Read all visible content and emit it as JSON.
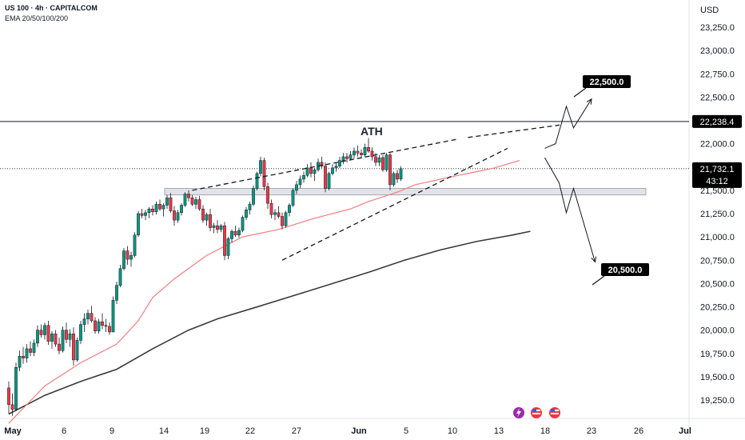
{
  "header": {
    "symbol_line": "US 100 · 4h · CAPITALCOM",
    "indicator_line": "EMA 20/50/100/200"
  },
  "chart_data": {
    "type": "candlestick",
    "currency": "USD",
    "ylim": [
      19050,
      23450
    ],
    "y_ticks": [
      "23,250.0",
      "23,000.0",
      "22,750.0",
      "22,500.0",
      "22,250.0",
      "22,000.0",
      "21,750.0",
      "21,500.0",
      "21,250.0",
      "21,000.0",
      "20,750.0",
      "20,500.0",
      "20,250.0",
      "20,000.0",
      "19,750.0",
      "19,500.0",
      "19,250.0"
    ],
    "y_tick_values": [
      23250,
      23000,
      22750,
      22500,
      22250,
      22000,
      21750,
      21500,
      21250,
      21000,
      20750,
      20500,
      20250,
      20000,
      19750,
      19500,
      19250
    ],
    "x_ticks": [
      "May",
      "6",
      "9",
      "14",
      "19",
      "22",
      "27",
      "Jun",
      "5",
      "10",
      "13",
      "18",
      "23",
      "26",
      "Jul"
    ],
    "bold_x_ticks": [
      "May",
      "Jun",
      "Jul"
    ],
    "price_tags": {
      "ath": {
        "value": 22238.4,
        "label": "22,238.4"
      },
      "current": {
        "value": 21732.1,
        "label": "21,732.1",
        "countdown": "43:12"
      }
    },
    "annotations": {
      "ath_label": "ATH",
      "target_up": {
        "value": 22500,
        "label": "22,500.0"
      },
      "target_down": {
        "value": 20500,
        "label": "20,500.0"
      }
    },
    "support_zone": [
      21450,
      21520
    ],
    "colors": {
      "up": "#089981",
      "down": "#f23645",
      "ema50": "#f77c80",
      "ema200": "#3a3a3a",
      "tag": "#000000"
    },
    "candles": [
      [
        19380,
        19450,
        19100,
        19200
      ],
      [
        19200,
        19320,
        19080,
        19150
      ],
      [
        19150,
        19650,
        19130,
        19600
      ],
      [
        19600,
        19780,
        19560,
        19720
      ],
      [
        19720,
        19820,
        19640,
        19700
      ],
      [
        19700,
        19850,
        19650,
        19800
      ],
      [
        19800,
        19880,
        19720,
        19760
      ],
      [
        19760,
        19900,
        19720,
        19860
      ],
      [
        19860,
        20050,
        19820,
        20000
      ],
      [
        20000,
        20060,
        19920,
        19950
      ],
      [
        19950,
        20080,
        19900,
        20050
      ],
      [
        20050,
        20100,
        19840,
        19880
      ],
      [
        19880,
        19990,
        19800,
        19960
      ],
      [
        19960,
        20000,
        19820,
        19850
      ],
      [
        19850,
        19920,
        19740,
        19780
      ],
      [
        19780,
        20040,
        19760,
        20000
      ],
      [
        20000,
        20080,
        19860,
        19900
      ],
      [
        19900,
        20010,
        19820,
        19960
      ],
      [
        19960,
        20030,
        19620,
        19680
      ],
      [
        19680,
        19920,
        19660,
        19890
      ],
      [
        19890,
        20100,
        19850,
        20060
      ],
      [
        20060,
        20180,
        19980,
        20120
      ],
      [
        20120,
        20220,
        20060,
        20180
      ],
      [
        20180,
        20260,
        20080,
        20100
      ],
      [
        20100,
        20140,
        19960,
        19990
      ],
      [
        19990,
        20120,
        19960,
        20090
      ],
      [
        20090,
        20180,
        20010,
        20050
      ],
      [
        20050,
        20120,
        19980,
        20040
      ],
      [
        20040,
        20080,
        19950,
        19980
      ],
      [
        19980,
        20360,
        19980,
        20320
      ],
      [
        20320,
        20520,
        20280,
        20480
      ],
      [
        20480,
        20700,
        20460,
        20660
      ],
      [
        20660,
        20880,
        20640,
        20850
      ],
      [
        20850,
        20900,
        20700,
        20760
      ],
      [
        20760,
        20840,
        20680,
        20800
      ],
      [
        20800,
        21050,
        20780,
        21020
      ],
      [
        21020,
        21280,
        21000,
        21250
      ],
      [
        21250,
        21300,
        21200,
        21230
      ],
      [
        21230,
        21290,
        21180,
        21260
      ],
      [
        21260,
        21320,
        21200,
        21300
      ],
      [
        21300,
        21340,
        21230,
        21270
      ],
      [
        21270,
        21380,
        21240,
        21350
      ],
      [
        21350,
        21400,
        21280,
        21300
      ],
      [
        21300,
        21360,
        21220,
        21340
      ],
      [
        21340,
        21450,
        21300,
        21420
      ],
      [
        21420,
        21470,
        21260,
        21280
      ],
      [
        21280,
        21330,
        21120,
        21180
      ],
      [
        21180,
        21290,
        21150,
        21260
      ],
      [
        21260,
        21360,
        21230,
        21340
      ],
      [
        21340,
        21480,
        21320,
        21460
      ],
      [
        21460,
        21500,
        21380,
        21420
      ],
      [
        21420,
        21450,
        21330,
        21350
      ],
      [
        21350,
        21430,
        21300,
        21400
      ],
      [
        21400,
        21440,
        21280,
        21300
      ],
      [
        21300,
        21340,
        21150,
        21180
      ],
      [
        21180,
        21260,
        21120,
        21240
      ],
      [
        21240,
        21300,
        21060,
        21100
      ],
      [
        21100,
        21150,
        21040,
        21120
      ],
      [
        21120,
        21180,
        21040,
        21080
      ],
      [
        21080,
        21140,
        21050,
        21120
      ],
      [
        21120,
        21160,
        20750,
        20800
      ],
      [
        20800,
        21000,
        20760,
        20980
      ],
      [
        20980,
        21080,
        20940,
        21060
      ],
      [
        21060,
        21120,
        21000,
        21020
      ],
      [
        21020,
        21100,
        20990,
        21070
      ],
      [
        21070,
        21230,
        21050,
        21210
      ],
      [
        21210,
        21320,
        21180,
        21290
      ],
      [
        21290,
        21380,
        21240,
        21350
      ],
      [
        21350,
        21550,
        21330,
        21520
      ],
      [
        21520,
        21700,
        21500,
        21680
      ],
      [
        21680,
        21860,
        21650,
        21820
      ],
      [
        21820,
        21850,
        21500,
        21540
      ],
      [
        21540,
        21580,
        21300,
        21360
      ],
      [
        21360,
        21400,
        21200,
        21240
      ],
      [
        21240,
        21300,
        21180,
        21260
      ],
      [
        21260,
        21330,
        21200,
        21220
      ],
      [
        21220,
        21260,
        21080,
        21120
      ],
      [
        21120,
        21280,
        21100,
        21260
      ],
      [
        21260,
        21360,
        21220,
        21340
      ],
      [
        21340,
        21520,
        21320,
        21500
      ],
      [
        21500,
        21600,
        21460,
        21560
      ],
      [
        21560,
        21660,
        21520,
        21620
      ],
      [
        21620,
        21700,
        21580,
        21660
      ],
      [
        21660,
        21780,
        21640,
        21740
      ],
      [
        21740,
        21800,
        21640,
        21680
      ],
      [
        21680,
        21740,
        21600,
        21720
      ],
      [
        21720,
        21840,
        21700,
        21800
      ],
      [
        21800,
        21860,
        21740,
        21760
      ],
      [
        21760,
        21800,
        21480,
        21520
      ],
      [
        21520,
        21700,
        21500,
        21680
      ],
      [
        21680,
        21780,
        21660,
        21740
      ],
      [
        21740,
        21800,
        21700,
        21760
      ],
      [
        21760,
        21860,
        21740,
        21820
      ],
      [
        21820,
        21900,
        21780,
        21860
      ],
      [
        21860,
        21900,
        21800,
        21840
      ],
      [
        21840,
        21920,
        21820,
        21880
      ],
      [
        21880,
        21960,
        21840,
        21920
      ],
      [
        21920,
        21980,
        21860,
        21900
      ],
      [
        21900,
        21940,
        21840,
        21880
      ],
      [
        21880,
        22000,
        21860,
        21960
      ],
      [
        21960,
        22060,
        21900,
        21920
      ],
      [
        21920,
        21960,
        21820,
        21860
      ],
      [
        21860,
        21900,
        21760,
        21800
      ],
      [
        21800,
        21880,
        21760,
        21850
      ],
      [
        21850,
        21880,
        21700,
        21720
      ],
      [
        21720,
        21900,
        21700,
        21880
      ],
      [
        21880,
        21900,
        21500,
        21560
      ],
      [
        21560,
        21700,
        21540,
        21680
      ],
      [
        21680,
        21720,
        21580,
        21620
      ],
      [
        21620,
        21760,
        21600,
        21732
      ]
    ],
    "ema50": [
      [
        0,
        19000
      ],
      [
        10,
        19400
      ],
      [
        20,
        19650
      ],
      [
        30,
        19850
      ],
      [
        36,
        20100
      ],
      [
        40,
        20350
      ],
      [
        46,
        20550
      ],
      [
        55,
        20800
      ],
      [
        65,
        21000
      ],
      [
        75,
        21080
      ],
      [
        85,
        21200
      ],
      [
        95,
        21300
      ],
      [
        100,
        21380
      ],
      [
        108,
        21480
      ],
      [
        113,
        21560
      ],
      [
        120,
        21620
      ],
      [
        125,
        21660
      ],
      [
        130,
        21700
      ],
      [
        135,
        21740
      ],
      [
        142,
        21820
      ]
    ],
    "ema200": [
      [
        0,
        19100
      ],
      [
        10,
        19300
      ],
      [
        20,
        19450
      ],
      [
        30,
        19580
      ],
      [
        40,
        19800
      ],
      [
        50,
        20000
      ],
      [
        58,
        20120
      ],
      [
        70,
        20260
      ],
      [
        80,
        20380
      ],
      [
        90,
        20500
      ],
      [
        100,
        20620
      ],
      [
        110,
        20750
      ],
      [
        120,
        20860
      ],
      [
        130,
        20950
      ],
      [
        140,
        21020
      ],
      [
        145,
        21060
      ]
    ],
    "wedge_upper": [
      [
        51,
        21500
      ],
      [
        125,
        22050
      ]
    ],
    "wedge_lower": [
      [
        76,
        20750
      ],
      [
        132,
        21820
      ]
    ],
    "projection_up": [
      [
        149,
        21950
      ],
      [
        152,
        22000
      ],
      [
        155,
        22400
      ],
      [
        157,
        22170
      ],
      [
        162,
        22480
      ]
    ],
    "projection_down": [
      [
        149,
        21850
      ],
      [
        153,
        21580
      ],
      [
        155,
        21260
      ],
      [
        157,
        21520
      ],
      [
        163,
        20730
      ]
    ]
  }
}
